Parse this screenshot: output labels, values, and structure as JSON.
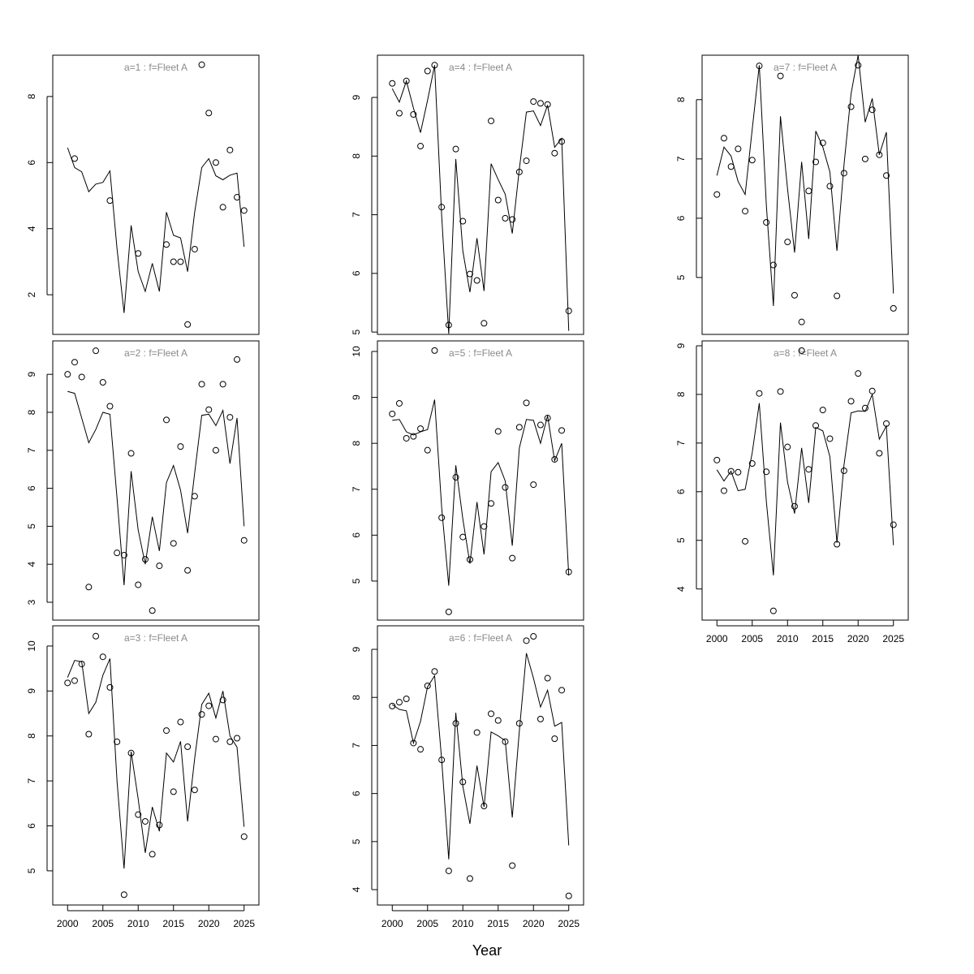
{
  "x_label": "Year",
  "chart_data": [
    {
      "type": "line",
      "title": "a=1  :  f=Fleet A",
      "x": [
        2000,
        2001,
        2002,
        2003,
        2004,
        2005,
        2006,
        2007,
        2008,
        2009,
        2010,
        2011,
        2012,
        2013,
        2014,
        2015,
        2016,
        2017,
        2018,
        2019,
        2020,
        2021,
        2022,
        2023,
        2024,
        2025
      ],
      "xlim": [
        1997.9,
        2027.1
      ],
      "ylim": [
        0.8,
        9.25
      ],
      "yticks": [
        2,
        4,
        6,
        8
      ],
      "series": [
        {
          "style": "points",
          "color": "#000000",
          "values": [
            null,
            6.12,
            null,
            null,
            null,
            null,
            4.85,
            null,
            null,
            null,
            3.25,
            null,
            null,
            null,
            3.52,
            3.0,
            3.0,
            1.1,
            3.38,
            8.96,
            7.5,
            6.0,
            4.65,
            6.38,
            4.95,
            4.55
          ]
        },
        {
          "style": "line",
          "color": "#000000",
          "values": [
            6.45,
            5.85,
            5.72,
            5.12,
            5.35,
            5.4,
            5.75,
            3.4,
            1.45,
            4.1,
            2.7,
            2.1,
            2.95,
            2.1,
            4.5,
            3.8,
            3.72,
            2.7,
            4.5,
            5.85,
            6.12,
            5.6,
            5.48,
            5.62,
            5.68,
            3.45
          ]
        }
      ]
    },
    {
      "type": "line",
      "title": "a=2  :  f=Fleet A",
      "x": [
        2000,
        2001,
        2002,
        2003,
        2004,
        2005,
        2006,
        2007,
        2008,
        2009,
        2010,
        2011,
        2012,
        2013,
        2014,
        2015,
        2016,
        2017,
        2018,
        2019,
        2020,
        2021,
        2022,
        2023,
        2024,
        2025
      ],
      "xlim": [
        1997.9,
        2027.1
      ],
      "ylim": [
        2.53,
        9.88
      ],
      "yticks": [
        3,
        4,
        5,
        6,
        7,
        8,
        9
      ],
      "series": [
        {
          "style": "points",
          "color": "#000000",
          "values": [
            9.0,
            9.32,
            8.93,
            3.4,
            9.62,
            8.79,
            8.16,
            4.3,
            4.24,
            6.92,
            3.46,
            4.13,
            2.78,
            3.96,
            7.8,
            4.55,
            7.1,
            3.84,
            5.79,
            8.74,
            8.07,
            7.0,
            8.74,
            7.87,
            9.39,
            4.63
          ]
        },
        {
          "style": "line",
          "color": "#000000",
          "values": [
            8.55,
            8.5,
            7.85,
            7.2,
            7.55,
            8.0,
            7.95,
            5.75,
            3.45,
            6.45,
            4.9,
            4.0,
            5.25,
            4.35,
            6.15,
            6.6,
            5.95,
            4.82,
            6.4,
            7.92,
            7.95,
            7.65,
            8.05,
            6.65,
            7.85,
            5.0
          ]
        }
      ]
    },
    {
      "type": "line",
      "title": "a=3  :  f=Fleet A",
      "x": [
        2000,
        2001,
        2002,
        2003,
        2004,
        2005,
        2006,
        2007,
        2008,
        2009,
        2010,
        2011,
        2012,
        2013,
        2014,
        2015,
        2016,
        2017,
        2018,
        2019,
        2020,
        2021,
        2022,
        2023,
        2024,
        2025
      ],
      "xlim": [
        1997.9,
        2027.1
      ],
      "xticks": [
        2000,
        2005,
        2010,
        2015,
        2020,
        2025
      ],
      "ylim": [
        4.24,
        10.45
      ],
      "yticks": [
        5,
        6,
        7,
        8,
        9,
        10
      ],
      "series": [
        {
          "style": "points",
          "color": "#000000",
          "values": [
            9.18,
            9.23,
            9.6,
            8.04,
            10.22,
            9.76,
            9.08,
            7.87,
            4.47,
            7.62,
            6.25,
            6.1,
            5.37,
            6.02,
            8.12,
            6.76,
            8.31,
            7.76,
            6.8,
            8.48,
            8.67,
            7.93,
            8.8,
            7.87,
            7.95,
            5.76
          ]
        },
        {
          "style": "line",
          "color": "#000000",
          "values": [
            9.3,
            9.68,
            9.65,
            8.5,
            8.75,
            9.35,
            9.72,
            7.0,
            5.05,
            7.65,
            6.6,
            5.4,
            6.42,
            5.88,
            7.62,
            7.42,
            7.88,
            6.1,
            7.5,
            8.7,
            8.95,
            8.4,
            9.0,
            8.0,
            7.75,
            5.98
          ]
        }
      ]
    },
    {
      "type": "line",
      "title": "a=4  :  f=Fleet A",
      "x": [
        2000,
        2001,
        2002,
        2003,
        2004,
        2005,
        2006,
        2007,
        2008,
        2009,
        2010,
        2011,
        2012,
        2013,
        2014,
        2015,
        2016,
        2017,
        2018,
        2019,
        2020,
        2021,
        2022,
        2023,
        2024,
        2025
      ],
      "xlim": [
        1997.9,
        2027.1
      ],
      "ylim": [
        4.96,
        9.72
      ],
      "yticks": [
        5,
        6,
        7,
        8,
        9
      ],
      "series": [
        {
          "style": "points",
          "color": "#000000",
          "values": [
            9.24,
            8.73,
            9.28,
            8.71,
            8.17,
            9.45,
            9.55,
            7.13,
            5.12,
            8.12,
            6.89,
            5.99,
            5.88,
            5.15,
            8.6,
            7.25,
            6.94,
            6.92,
            7.73,
            7.92,
            8.93,
            8.9,
            8.88,
            8.05,
            8.25,
            5.36
          ]
        },
        {
          "style": "line",
          "color": "#000000",
          "values": [
            9.15,
            8.92,
            9.28,
            8.82,
            8.4,
            8.95,
            9.55,
            6.98,
            4.97,
            7.95,
            6.38,
            5.68,
            6.6,
            5.7,
            7.87,
            7.6,
            7.35,
            6.68,
            7.78,
            8.75,
            8.77,
            8.52,
            8.87,
            8.15,
            8.3,
            5.02
          ]
        }
      ]
    },
    {
      "type": "line",
      "title": "a=5  :  f=Fleet A",
      "x": [
        2000,
        2001,
        2002,
        2003,
        2004,
        2005,
        2006,
        2007,
        2008,
        2009,
        2010,
        2011,
        2012,
        2013,
        2014,
        2015,
        2016,
        2017,
        2018,
        2019,
        2020,
        2021,
        2022,
        2023,
        2024,
        2025
      ],
      "xlim": [
        1997.9,
        2027.1
      ],
      "ylim": [
        4.15,
        10.23
      ],
      "yticks": [
        5,
        6,
        7,
        8,
        9,
        10
      ],
      "series": [
        {
          "style": "points",
          "color": "#000000",
          "values": [
            8.64,
            8.87,
            8.11,
            8.15,
            8.32,
            7.85,
            10.02,
            6.38,
            4.33,
            7.26,
            5.96,
            5.47,
            null,
            6.19,
            6.69,
            8.26,
            7.04,
            5.5,
            8.35,
            8.88,
            7.1,
            8.4,
            8.55,
            7.65,
            8.28,
            5.2
          ]
        },
        {
          "style": "line",
          "color": "#000000",
          "values": [
            8.5,
            8.52,
            8.25,
            8.18,
            8.25,
            8.3,
            8.95,
            6.6,
            4.9,
            7.52,
            6.35,
            5.38,
            6.72,
            5.58,
            7.38,
            7.58,
            7.18,
            5.77,
            7.9,
            8.52,
            8.5,
            8.0,
            8.6,
            7.62,
            8.0,
            5.12
          ]
        }
      ]
    },
    {
      "type": "line",
      "title": "a=6  :  f=Fleet A",
      "x": [
        2000,
        2001,
        2002,
        2003,
        2004,
        2005,
        2006,
        2007,
        2008,
        2009,
        2010,
        2011,
        2012,
        2013,
        2014,
        2015,
        2016,
        2017,
        2018,
        2019,
        2020,
        2021,
        2022,
        2023,
        2024,
        2025
      ],
      "xlim": [
        1997.9,
        2027.1
      ],
      "xticks": [
        2000,
        2005,
        2010,
        2015,
        2020,
        2025
      ],
      "ylim": [
        3.68,
        9.49
      ],
      "yticks": [
        4,
        5,
        6,
        7,
        8,
        9
      ],
      "series": [
        {
          "style": "points",
          "color": "#000000",
          "values": [
            7.82,
            7.9,
            7.97,
            7.05,
            6.92,
            8.24,
            8.54,
            6.7,
            4.39,
            7.46,
            6.24,
            4.23,
            7.27,
            5.74,
            7.66,
            7.52,
            7.08,
            4.5,
            7.46,
            9.18,
            9.27,
            7.55,
            8.4,
            7.14,
            8.15,
            3.87
          ]
        },
        {
          "style": "line",
          "color": "#000000",
          "values": [
            7.85,
            7.75,
            7.72,
            7.05,
            7.5,
            8.22,
            8.45,
            6.7,
            4.63,
            7.68,
            6.15,
            5.37,
            6.58,
            5.72,
            7.28,
            7.2,
            7.1,
            5.5,
            7.3,
            8.92,
            8.4,
            7.8,
            8.15,
            7.4,
            7.48,
            4.92
          ]
        }
      ]
    },
    {
      "type": "line",
      "title": "a=7  :  f=Fleet A",
      "x": [
        2000,
        2001,
        2002,
        2003,
        2004,
        2005,
        2006,
        2007,
        2008,
        2009,
        2010,
        2011,
        2012,
        2013,
        2014,
        2015,
        2016,
        2017,
        2018,
        2019,
        2020,
        2021,
        2022,
        2023,
        2024,
        2025
      ],
      "xlim": [
        1997.9,
        2027.1
      ],
      "ylim": [
        4.04,
        8.75
      ],
      "yticks": [
        5,
        6,
        7,
        8
      ],
      "series": [
        {
          "style": "points",
          "color": "#000000",
          "values": [
            6.4,
            7.35,
            6.87,
            7.17,
            6.12,
            6.98,
            8.57,
            5.93,
            5.21,
            8.4,
            5.6,
            4.7,
            4.25,
            6.46,
            6.95,
            7.27,
            6.54,
            4.69,
            6.76,
            7.88,
            8.58,
            7.0,
            7.83,
            7.07,
            6.72,
            4.48
          ]
        },
        {
          "style": "line",
          "color": "#000000",
          "values": [
            6.72,
            7.2,
            7.05,
            6.62,
            6.4,
            7.5,
            8.58,
            6.22,
            4.52,
            7.72,
            6.5,
            5.42,
            6.95,
            5.65,
            7.47,
            7.2,
            6.78,
            5.45,
            6.9,
            8.1,
            8.75,
            7.62,
            8.02,
            7.07,
            7.45,
            4.73
          ]
        }
      ]
    },
    {
      "type": "line",
      "title": "a=8  :  f=Fleet A",
      "x": [
        2000,
        2001,
        2002,
        2003,
        2004,
        2005,
        2006,
        2007,
        2008,
        2009,
        2010,
        2011,
        2012,
        2013,
        2014,
        2015,
        2016,
        2017,
        2018,
        2019,
        2020,
        2021,
        2022,
        2023,
        2024,
        2025
      ],
      "xlim": [
        1997.9,
        2027.1
      ],
      "xticks": [
        2000,
        2005,
        2010,
        2015,
        2020,
        2025
      ],
      "ylim": [
        3.36,
        9.1
      ],
      "yticks": [
        4,
        5,
        6,
        7,
        8,
        9
      ],
      "series": [
        {
          "style": "points",
          "color": "#000000",
          "values": [
            6.65,
            6.02,
            6.42,
            6.4,
            4.98,
            6.58,
            8.02,
            6.41,
            3.55,
            8.06,
            6.92,
            5.7,
            8.9,
            6.46,
            7.36,
            7.68,
            7.09,
            4.92,
            6.43,
            7.86,
            8.43,
            7.72,
            8.07,
            6.79,
            7.4,
            5.32
          ]
        },
        {
          "style": "line",
          "color": "#000000",
          "values": [
            6.45,
            6.22,
            6.42,
            6.02,
            6.05,
            6.8,
            7.82,
            5.8,
            4.28,
            7.42,
            6.2,
            5.55,
            6.9,
            5.77,
            7.32,
            7.25,
            6.72,
            4.95,
            6.55,
            7.62,
            7.66,
            7.65,
            8.0,
            7.08,
            7.35,
            4.9
          ]
        }
      ]
    }
  ]
}
